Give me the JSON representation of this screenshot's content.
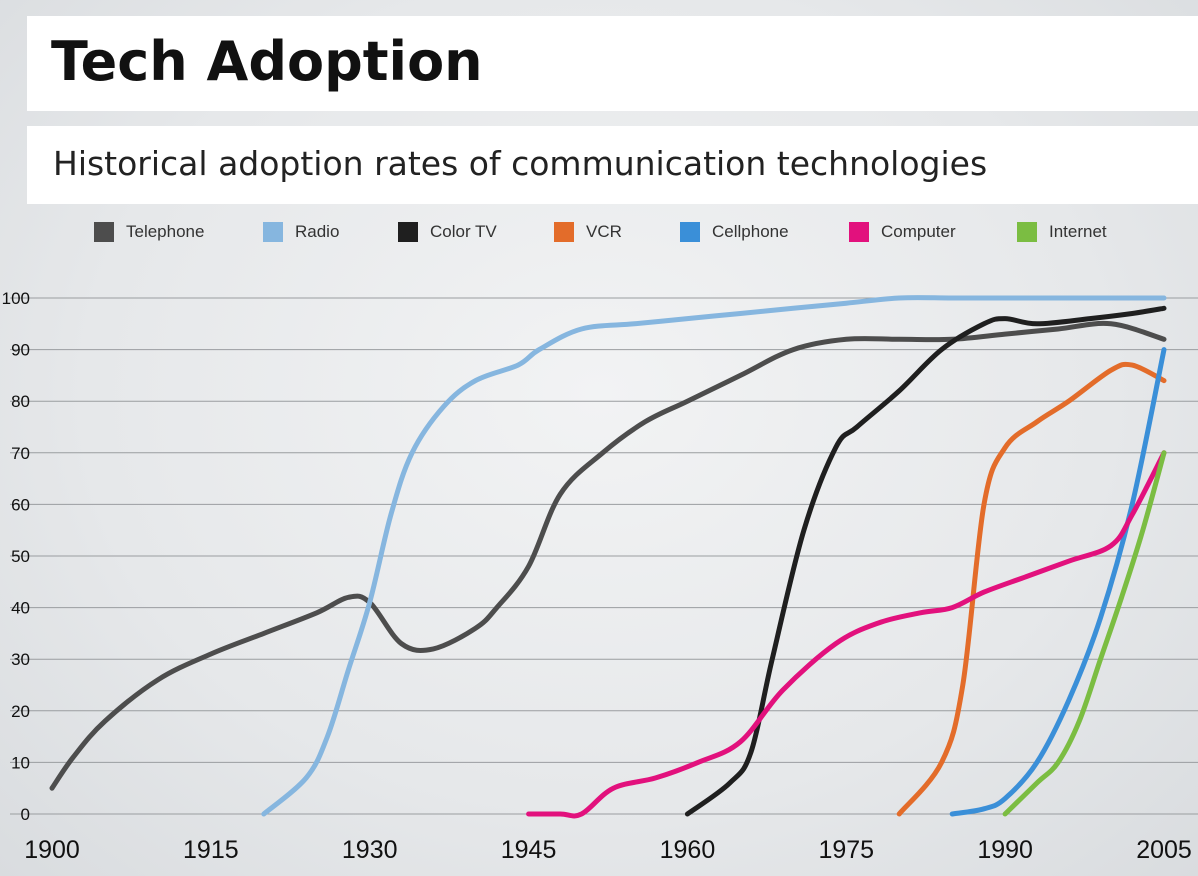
{
  "title": "Tech Adoption",
  "subtitle": "Historical adoption rates of communication technologies",
  "chart_data": {
    "type": "line",
    "xlim": [
      1900,
      2005
    ],
    "ylim": [
      0,
      100
    ],
    "x_ticks": [
      "1900",
      "1915",
      "1930",
      "1945",
      "1960",
      "1975",
      "1990",
      "2005"
    ],
    "y_ticks": [
      "0",
      "10",
      "20",
      "30",
      "40",
      "50",
      "60",
      "70",
      "80",
      "90",
      "100"
    ],
    "grid": true,
    "legend_position": "top",
    "series": [
      {
        "name": "Telephone",
        "color": "#4d4d4d",
        "points": [
          [
            1900,
            5
          ],
          [
            1902,
            11
          ],
          [
            1905,
            18
          ],
          [
            1910,
            26
          ],
          [
            1915,
            31
          ],
          [
            1920,
            35
          ],
          [
            1925,
            39
          ],
          [
            1928,
            42
          ],
          [
            1930,
            41
          ],
          [
            1933,
            33
          ],
          [
            1936,
            32
          ],
          [
            1940,
            36
          ],
          [
            1942,
            40
          ],
          [
            1945,
            48
          ],
          [
            1948,
            62
          ],
          [
            1952,
            70
          ],
          [
            1956,
            76
          ],
          [
            1960,
            80
          ],
          [
            1965,
            85
          ],
          [
            1970,
            90
          ],
          [
            1975,
            92
          ],
          [
            1980,
            92
          ],
          [
            1985,
            92
          ],
          [
            1990,
            93
          ],
          [
            1995,
            94
          ],
          [
            2000,
            95
          ],
          [
            2005,
            92
          ]
        ]
      },
      {
        "name": "Radio",
        "color": "#86b6df",
        "points": [
          [
            1920,
            0
          ],
          [
            1924,
            7
          ],
          [
            1926,
            15
          ],
          [
            1928,
            28
          ],
          [
            1930,
            41
          ],
          [
            1932,
            58
          ],
          [
            1934,
            70
          ],
          [
            1937,
            79
          ],
          [
            1940,
            84
          ],
          [
            1944,
            87
          ],
          [
            1946,
            90
          ],
          [
            1950,
            94
          ],
          [
            1955,
            95
          ],
          [
            1960,
            96
          ],
          [
            1965,
            97
          ],
          [
            1970,
            98
          ],
          [
            1975,
            99
          ],
          [
            1980,
            100
          ],
          [
            1985,
            100
          ],
          [
            1990,
            100
          ],
          [
            1995,
            100
          ],
          [
            2000,
            100
          ],
          [
            2005,
            100
          ]
        ]
      },
      {
        "name": "Color TV",
        "color": "#1f1f1f",
        "points": [
          [
            1960,
            0
          ],
          [
            1964,
            6
          ],
          [
            1966,
            12
          ],
          [
            1968,
            30
          ],
          [
            1971,
            55
          ],
          [
            1974,
            71
          ],
          [
            1976,
            75
          ],
          [
            1980,
            82
          ],
          [
            1984,
            90
          ],
          [
            1988,
            95
          ],
          [
            1990,
            96
          ],
          [
            1993,
            95
          ],
          [
            1998,
            96
          ],
          [
            2002,
            97
          ],
          [
            2005,
            98
          ]
        ]
      },
      {
        "name": "VCR",
        "color": "#e36c2a",
        "points": [
          [
            1980,
            0
          ],
          [
            1984,
            10
          ],
          [
            1986,
            25
          ],
          [
            1988,
            60
          ],
          [
            1990,
            71
          ],
          [
            1993,
            76
          ],
          [
            1996,
            80
          ],
          [
            2000,
            86
          ],
          [
            2002,
            87
          ],
          [
            2005,
            84
          ]
        ]
      },
      {
        "name": "Cellphone",
        "color": "#3a8fd8",
        "points": [
          [
            1985,
            0
          ],
          [
            1988,
            1
          ],
          [
            1990,
            3
          ],
          [
            1993,
            10
          ],
          [
            1996,
            22
          ],
          [
            1999,
            38
          ],
          [
            2002,
            60
          ],
          [
            2005,
            90
          ]
        ]
      },
      {
        "name": "Computer",
        "color": "#e2117d",
        "points": [
          [
            1945,
            0
          ],
          [
            1948,
            0
          ],
          [
            1950,
            0
          ],
          [
            1953,
            5
          ],
          [
            1957,
            7
          ],
          [
            1961,
            10
          ],
          [
            1965,
            14
          ],
          [
            1969,
            24
          ],
          [
            1974,
            33
          ],
          [
            1978,
            37
          ],
          [
            1982,
            39
          ],
          [
            1985,
            40
          ],
          [
            1988,
            43
          ],
          [
            1992,
            46
          ],
          [
            1996,
            49
          ],
          [
            2000,
            52
          ],
          [
            2002,
            58
          ],
          [
            2005,
            70
          ]
        ]
      },
      {
        "name": "Internet",
        "color": "#7bbd42",
        "points": [
          [
            1990,
            0
          ],
          [
            1993,
            6
          ],
          [
            1995,
            10
          ],
          [
            1997,
            18
          ],
          [
            1999,
            30
          ],
          [
            2001,
            42
          ],
          [
            2003,
            55
          ],
          [
            2005,
            70
          ]
        ]
      }
    ]
  }
}
